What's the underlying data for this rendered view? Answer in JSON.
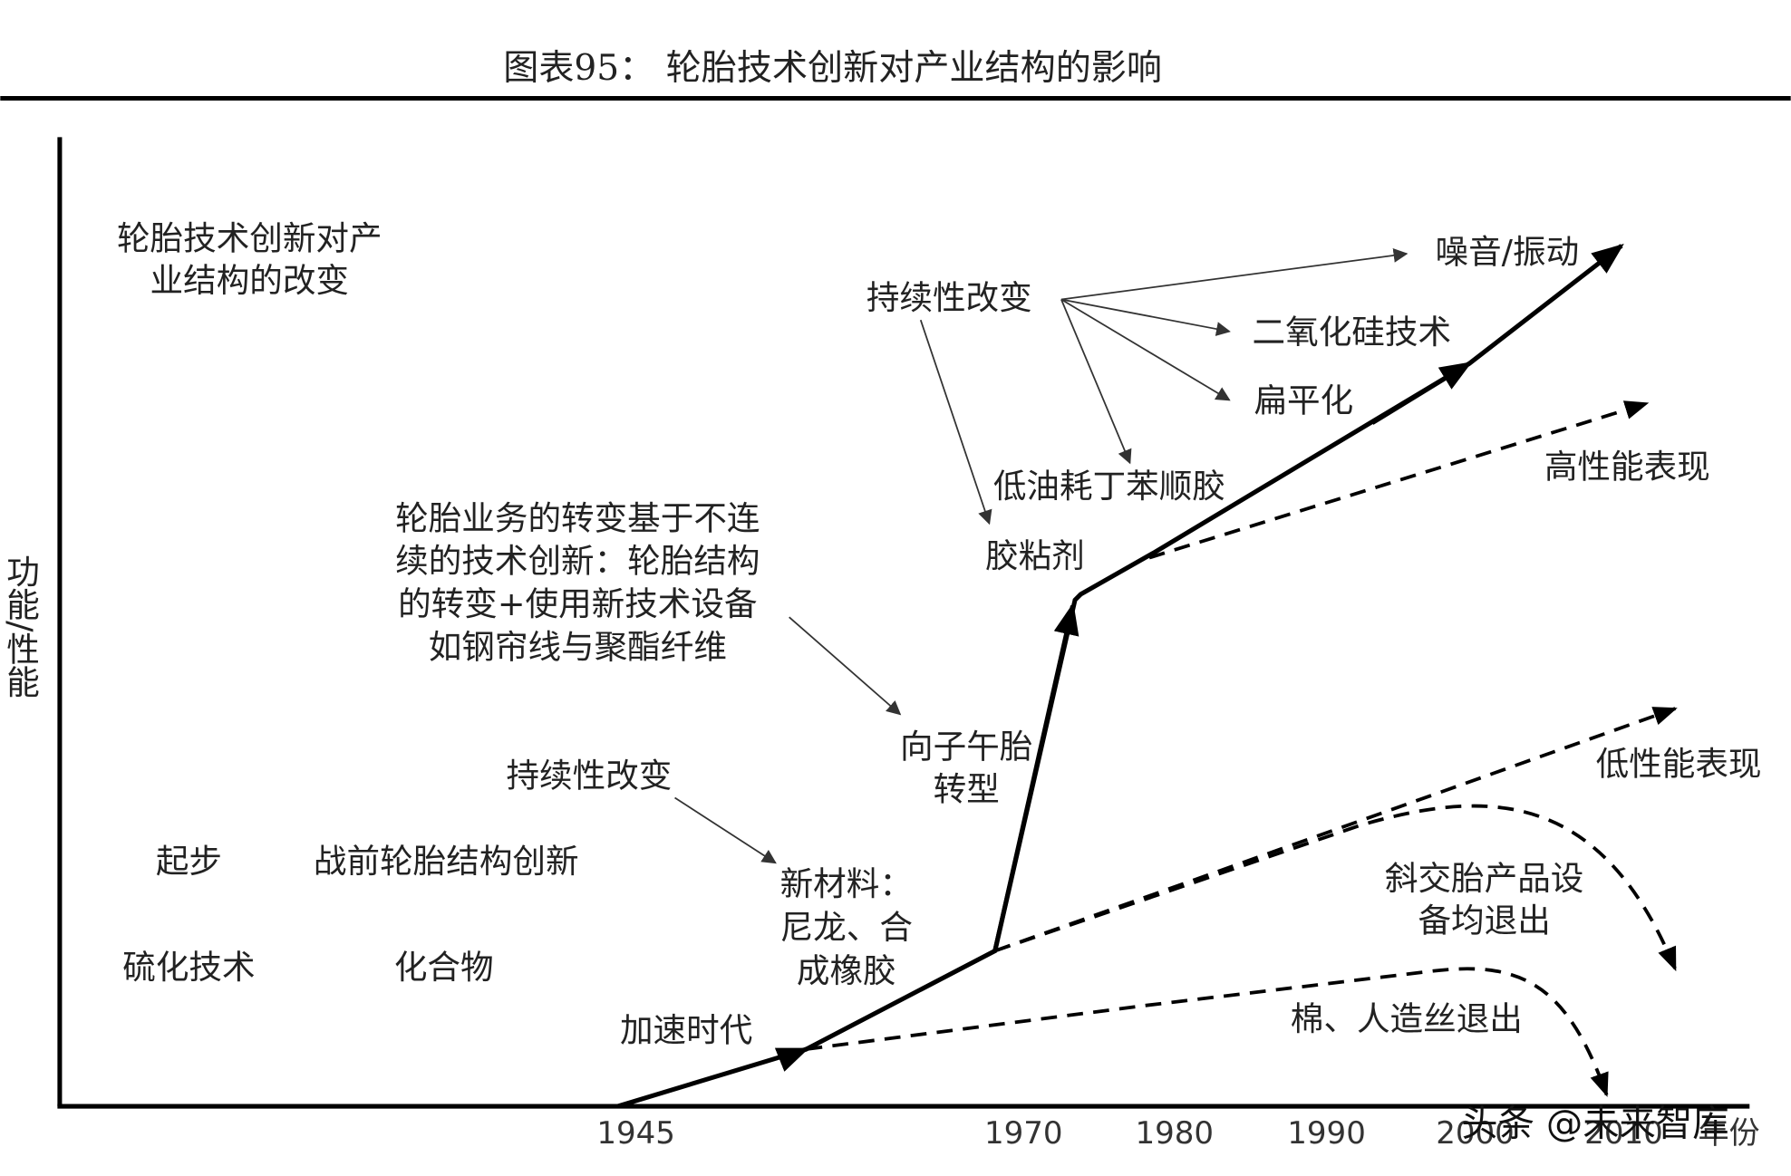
{
  "title": "图表95：  轮胎技术创新对产业结构的影响",
  "y_axis_label": "功能/性能",
  "x_axis_labels": [
    "1945",
    "1970",
    "1980",
    "1990",
    "2000",
    "2010",
    "年份"
  ],
  "annotations": [
    [
      "轮胎技术创新对产",
      "业结构的改变"
    ],
    [
      "起步"
    ],
    [
      "战前轮胎结构创新"
    ],
    [
      "硫化技术"
    ],
    [
      "化合物"
    ],
    [
      "持续性改变"
    ],
    [
      "新材料：",
      "尼龙、合",
      "成橡胶"
    ],
    [
      "加速时代"
    ],
    [
      "轮胎业务的转变基于不连",
      "续的技术创新：轮胎结构",
      "的转变+使用新技术设备",
      "如钢帘线与聚酯纤维"
    ],
    [
      "向子午胎",
      "转型"
    ],
    [
      "持续性改变"
    ],
    [
      "噪音/振动"
    ],
    [
      "二氧化硅技术"
    ],
    [
      "扁平化"
    ],
    [
      "低油耗丁苯顺胶"
    ],
    [
      "胶粘剂"
    ],
    [
      "高性能表现"
    ],
    [
      "低性能表现"
    ],
    [
      "斜交胎产品设",
      "备均退出"
    ],
    [
      "棉、人造丝退出"
    ]
  ],
  "watermark": "头条 @未来智库"
}
